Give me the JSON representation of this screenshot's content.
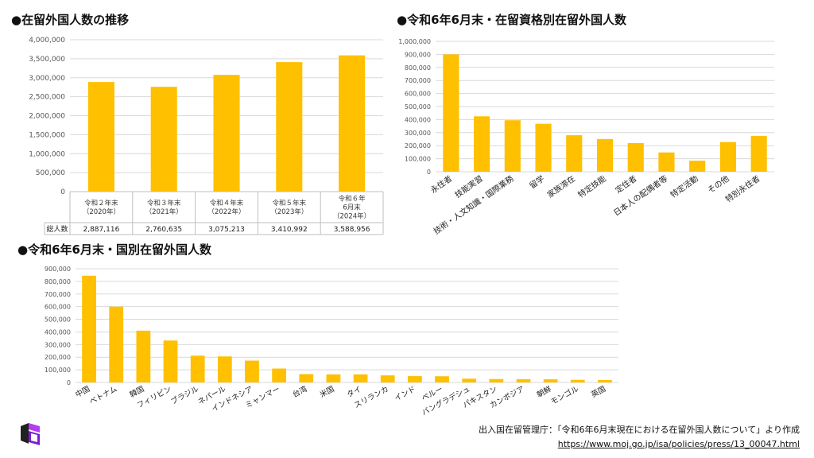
{
  "colors": {
    "bar": "#FFC000",
    "grid": "#D9D9D9",
    "axis_text": "#555555",
    "table_line": "#BFBFBF"
  },
  "source": {
    "line1": "出入国在留管理庁：「令和6年6月末現在における在留外国人数について」より作成",
    "url": "https://www.moj.go.jp/isa/policies/press/13_00047.html"
  },
  "chart_data": [
    {
      "type": "bar",
      "title": "●在留外国人数の推移",
      "categories": [
        "令和２年末\n（2020年）",
        "令和３年末\n（2021年）",
        "令和４年末\n（2022年）",
        "令和５年末\n（2023年）",
        "令和６年\n6月末\n（2024年）"
      ],
      "values": [
        2887116,
        2760635,
        3075213,
        3410992,
        3588956
      ],
      "value_labels": [
        "2,887,116",
        "2,760,635",
        "3,075,213",
        "3,410,992",
        "3,588,956"
      ],
      "row_label": "総人数",
      "yticks": [
        "0",
        "500,000",
        "1,000,000",
        "1,500,000",
        "2,000,000",
        "2,500,000",
        "3,000,000",
        "3,500,000",
        "4,000,000"
      ],
      "ylim": [
        0,
        4000000
      ],
      "grid": true
    },
    {
      "type": "bar",
      "title": "●令和6年6月末・在留資格別在留外国人数",
      "categories": [
        "永住者",
        "技能実習",
        "技術・人文知識・国際業務",
        "留学",
        "家族滞在",
        "特定技能",
        "定住者",
        "日本人の配偶者等",
        "特定活動",
        "その他",
        "特別永住者"
      ],
      "values": [
        900000,
        425000,
        395000,
        368000,
        280000,
        251000,
        220000,
        148000,
        85000,
        228000,
        275000
      ],
      "yticks": [
        "0",
        "100,000",
        "200,000",
        "300,000",
        "400,000",
        "500,000",
        "600,000",
        "700,000",
        "800,000",
        "900,000",
        "1,000,000"
      ],
      "ylim": [
        0,
        1000000
      ],
      "grid": true
    },
    {
      "type": "bar",
      "title": "●令和6年6月末・国別在留外国人数",
      "categories": [
        "中国",
        "ベトナム",
        "韓国",
        "フィリピン",
        "ブラジル",
        "ネパール",
        "インドネシア",
        "ミャンマー",
        "台湾",
        "米国",
        "タイ",
        "スリランカ",
        "インド",
        "ペルー",
        "バングラデシュ",
        "パキスタン",
        "カンボジア",
        "朝鮮",
        "モンゴル",
        "英国"
      ],
      "values": [
        845000,
        600000,
        410000,
        332000,
        212000,
        206000,
        173000,
        110000,
        66000,
        64000,
        64000,
        56000,
        50000,
        49000,
        30000,
        27000,
        26000,
        25000,
        21000,
        19000
      ],
      "yticks": [
        "0",
        "100,000",
        "200,000",
        "300,000",
        "400,000",
        "500,000",
        "600,000",
        "700,000",
        "800,000",
        "900,000"
      ],
      "ylim": [
        0,
        900000
      ],
      "grid": true
    }
  ]
}
